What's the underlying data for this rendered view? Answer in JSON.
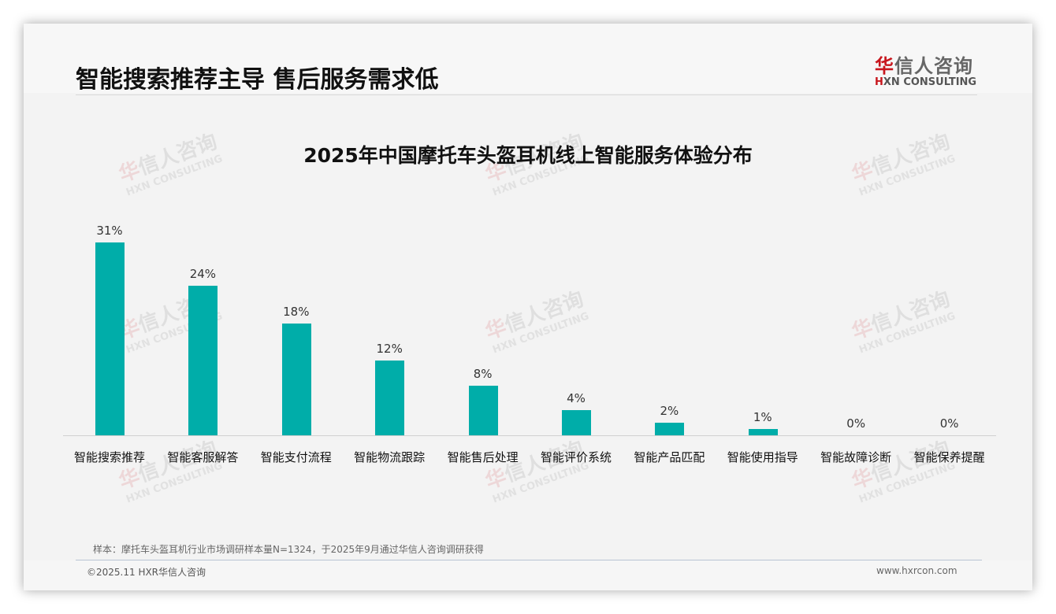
{
  "header": {
    "title": "智能搜索推荐主导 售后服务需求低",
    "logo": {
      "cn_first": "华",
      "cn_rest": "信人咨询",
      "en_first": "H",
      "en_rest": "XN CONSULTING"
    }
  },
  "watermark": {
    "cn_first": "华",
    "cn_rest": "信人咨询",
    "en": "HXN CONSULTING"
  },
  "chart_data": {
    "type": "bar",
    "title": "2025年中国摩托车头盔耳机线上智能服务体验分布",
    "xlabel": "",
    "ylabel": "",
    "categories": [
      "智能搜索推荐",
      "智能客服解答",
      "智能支付流程",
      "智能物流跟踪",
      "智能售后处理",
      "智能评价系统",
      "智能产品匹配",
      "智能使用指导",
      "智能故障诊断",
      "智能保养提醒"
    ],
    "values": [
      31,
      24,
      18,
      12,
      8,
      4,
      2,
      1,
      0,
      0
    ],
    "value_labels": [
      "31%",
      "24%",
      "18%",
      "12%",
      "8%",
      "4%",
      "2%",
      "1%",
      "0%",
      "0%"
    ],
    "unit": "%",
    "ylim": [
      0,
      35
    ],
    "grid": false,
    "legend": null,
    "bar_color": "#00ada9"
  },
  "footer": {
    "note": "样本：摩托车头盔耳机行业市场调研样本量N=1324，于2025年9月通过华信人咨询调研获得",
    "copyright": "©2025.11 HXR华信人咨询",
    "website": "www.hxrcon.com"
  }
}
